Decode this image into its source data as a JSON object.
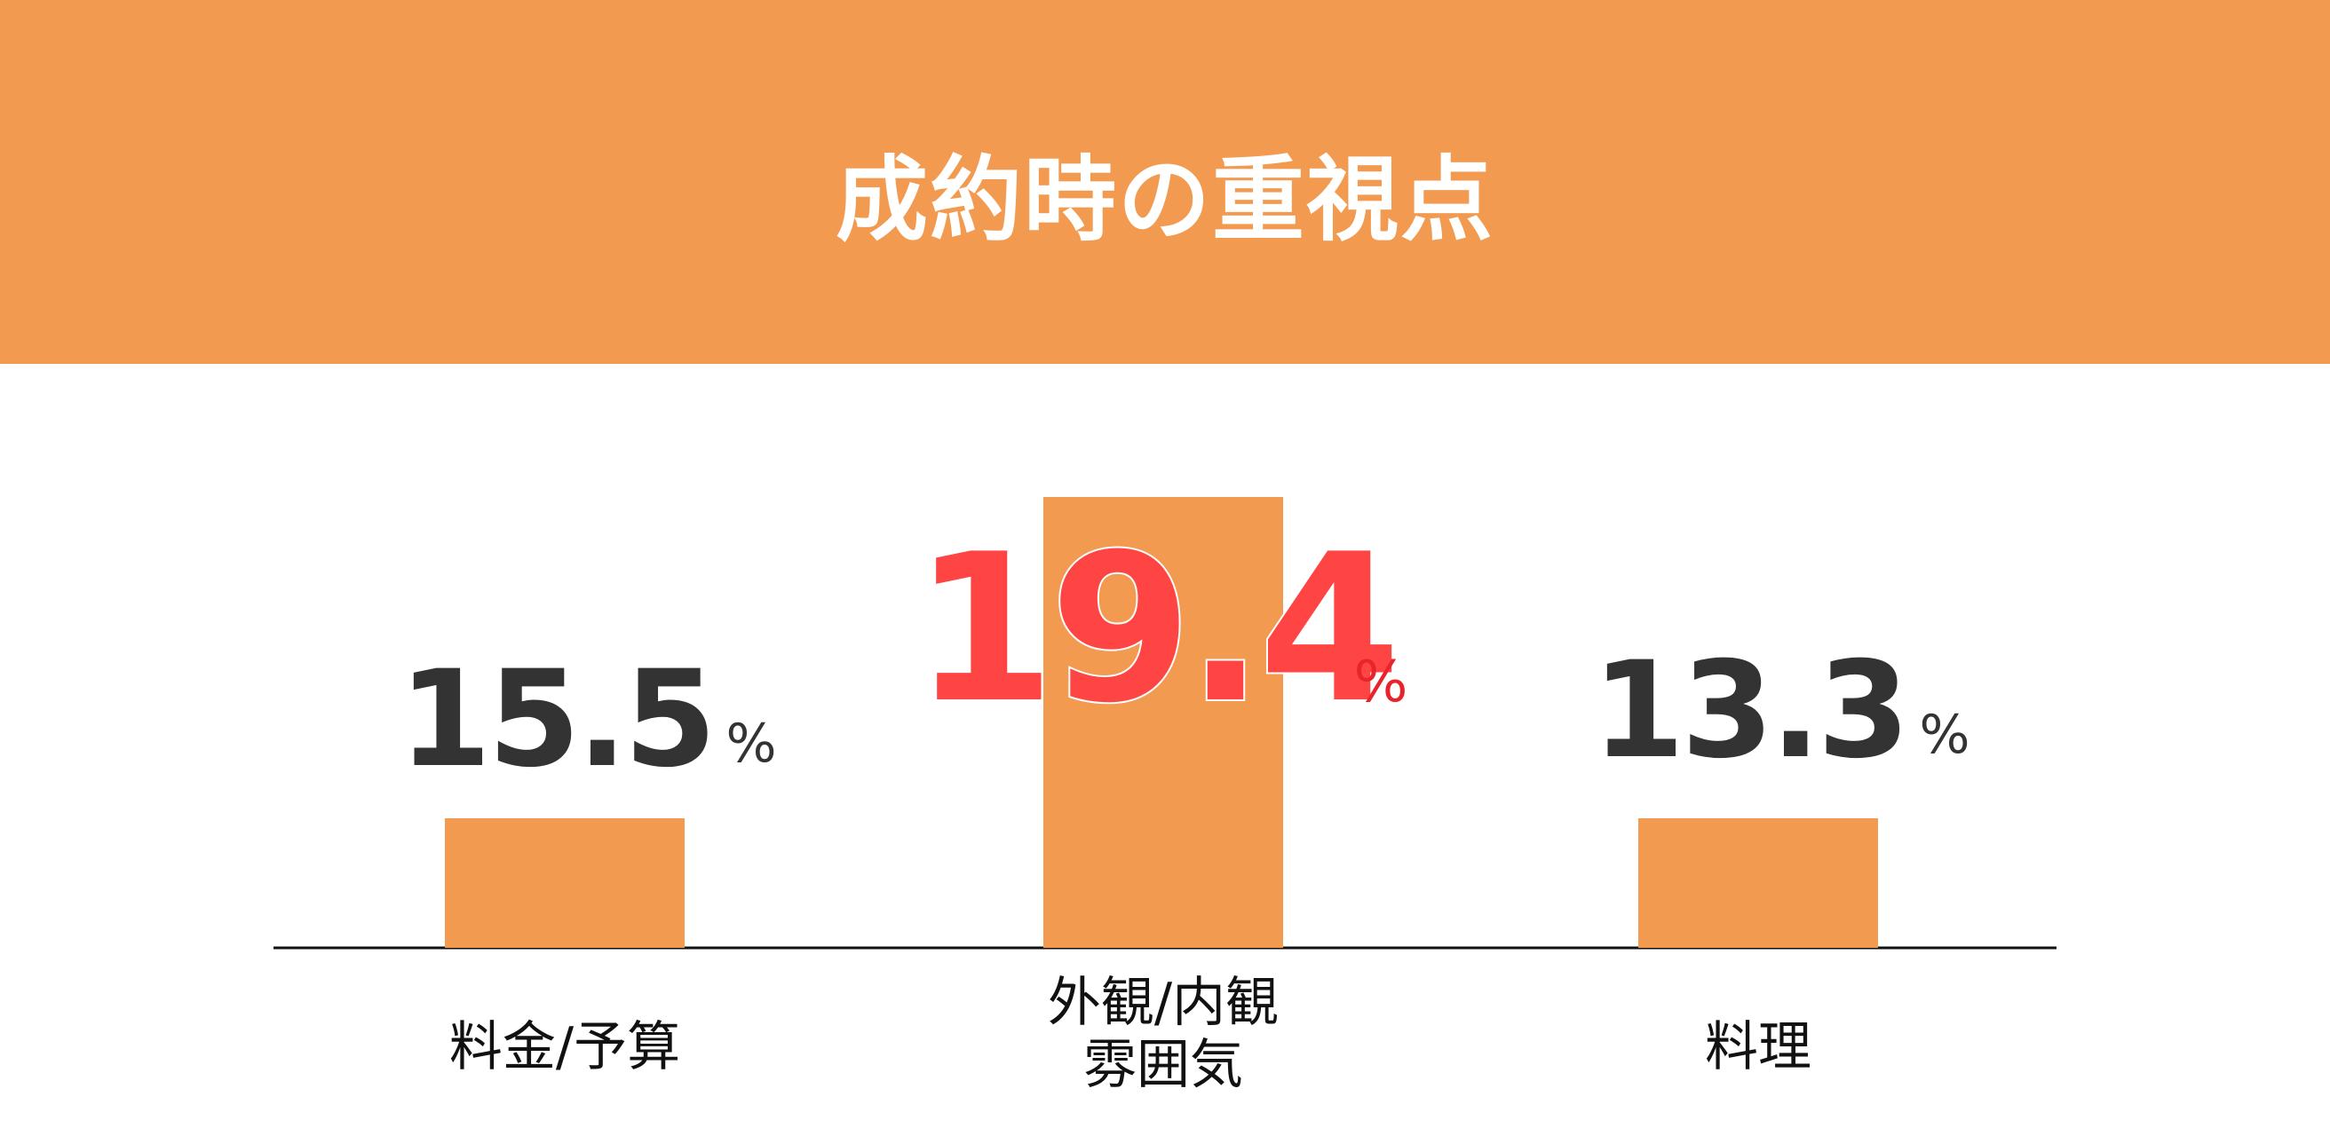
{
  "header": {
    "title": "成約時の重視点"
  },
  "colors": {
    "header_bg": "#F29A50",
    "bar": "#F29A50",
    "value_dark": "#333333",
    "value_highlight": "#FF4444",
    "percent_highlight": "#E8242B",
    "baseline": "#111111",
    "label": "#111111"
  },
  "chart_data": {
    "type": "bar",
    "title": "成約時の重視点",
    "categories": [
      "料金/予算",
      "外観/内観\n雰囲気",
      "料理"
    ],
    "category_lines": [
      [
        "料金/予算"
      ],
      [
        "外観/内観",
        "雰囲気"
      ],
      [
        "料理"
      ]
    ],
    "values": [
      15.5,
      19.4,
      13.3
    ],
    "value_labels": [
      "15.5",
      "19.4",
      "13.3"
    ],
    "unit": "%",
    "highlight_index": 1,
    "grid": false,
    "legend": "none"
  }
}
